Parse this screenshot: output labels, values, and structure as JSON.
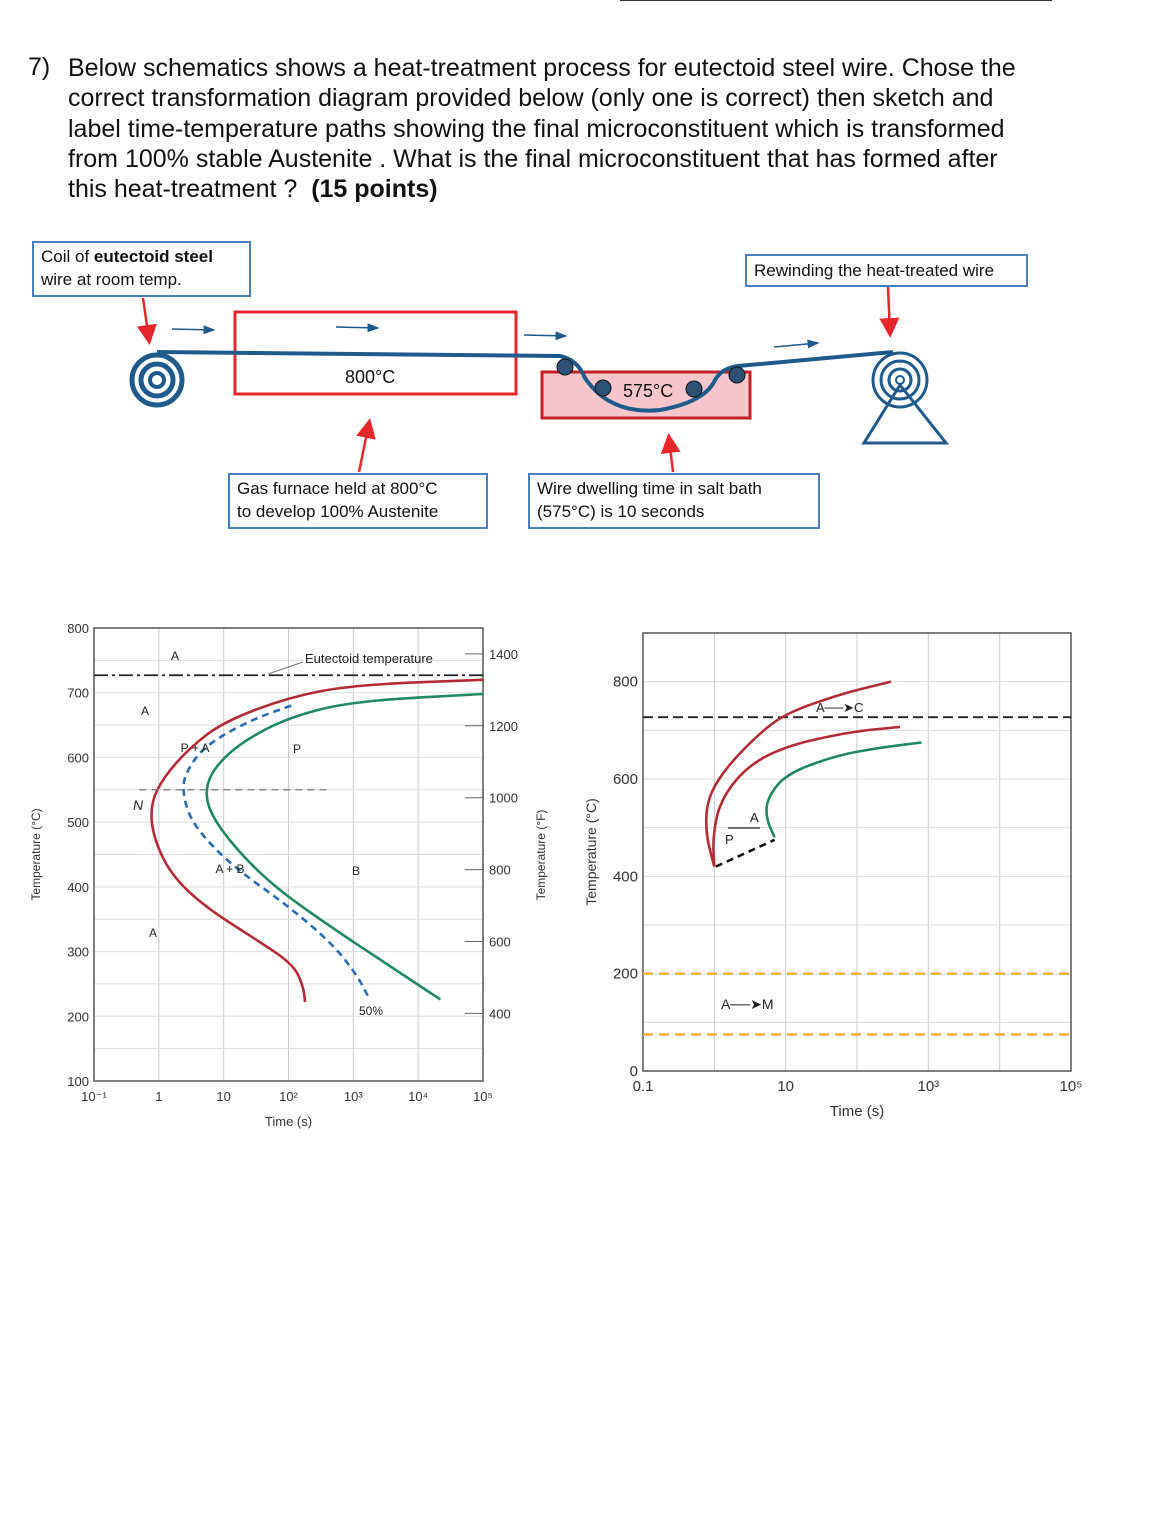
{
  "question": {
    "number": "7)",
    "text_lines": [
      "Below schematics shows a heat-treatment process for eutectoid steel wire. Chose the",
      "correct transformation diagram provided below (only one is correct) then sketch and",
      "label time-temperature paths showing the final microconstituent  which is transformed",
      "from 100% stable Austenite . What is the final microconstituent that has formed after",
      "this heat-treatment ?  "
    ],
    "points": "(15 points)"
  },
  "process": {
    "coil_label_prefix": "Coil of ",
    "coil_label_bold": "eutectoid steel",
    "coil_label_suffix": "wire at room temp.",
    "furnace_temp": "800°C",
    "bath_temp": "575°C",
    "furnace_note_line1": "Gas furnace held at  800°C",
    "furnace_note_line2": "to develop 100% Austenite",
    "bath_note_line1": "Wire dwelling time in salt bath",
    "bath_note_line2": "(575°C) is 10 seconds",
    "rewind_label": "Rewinding the heat-treated wire",
    "colors": {
      "box_border": "#4a7fc1",
      "furnace": "#e8262b",
      "bath_fill": "#f6c6cc",
      "wire": "#1f5a8c",
      "arrow_red": "#e8262b"
    }
  },
  "chart_data": [
    {
      "type": "line",
      "xlabel": "Time (s)",
      "ylabel": "Temperature (°C)",
      "y2label": "Temperature (°F)",
      "xscale": "log",
      "xlim": [
        0.1,
        100000
      ],
      "ylim": [
        100,
        800
      ],
      "x_ticks": [
        "10⁻¹",
        "1",
        "10",
        "10²",
        "10³",
        "10⁴",
        "10⁵"
      ],
      "y_ticks": [
        "100",
        "200",
        "300",
        "400",
        "500",
        "600",
        "700",
        "800"
      ],
      "y2_ticks": [
        "400",
        "600",
        "800",
        "1000",
        "1200",
        "1400"
      ],
      "grid": true,
      "eutectoid_temp": 727,
      "eutectoid_label": "Eutectoid temperature",
      "isotherm_dashed": 550,
      "region_labels": [
        "A",
        "A",
        "A",
        "P",
        "B",
        "A + B",
        "N",
        "P + A",
        "50%"
      ],
      "series": [
        {
          "style": "start",
          "color": "#b52b35",
          "points": [
            [
              100000,
              720
            ],
            [
              1000,
              712
            ],
            [
              100,
              693
            ],
            [
              10,
              655
            ],
            [
              3,
              615
            ],
            [
              1.2,
              570
            ],
            [
              0.75,
              530
            ],
            [
              0.8,
              480
            ],
            [
              1.5,
              420
            ],
            [
              5,
              370
            ],
            [
              30,
              320
            ],
            [
              120,
              280
            ],
            [
              170,
              245
            ],
            [
              180,
              222
            ]
          ]
        },
        {
          "style": "50% dashed",
          "color": "#2a6db5",
          "points": [
            [
              110,
              680
            ],
            [
              30,
              660
            ],
            [
              8,
              630
            ],
            [
              4,
              605
            ],
            [
              2.6,
              575
            ],
            [
              2.3,
              550
            ],
            [
              3,
              505
            ],
            [
              7,
              460
            ],
            [
              20,
              420
            ],
            [
              100,
              370
            ],
            [
              500,
              310
            ],
            [
              1200,
              260
            ],
            [
              1800,
              225
            ]
          ]
        },
        {
          "style": "finish",
          "color": "#1f8a60",
          "points": [
            [
              100000,
              698
            ],
            [
              1000,
              687
            ],
            [
              100,
              662
            ],
            [
              20,
              625
            ],
            [
              8,
              590
            ],
            [
              5.2,
              555
            ],
            [
              6,
              515
            ],
            [
              15,
              460
            ],
            [
              60,
              400
            ],
            [
              500,
              335
            ],
            [
              4000,
              275
            ],
            [
              22000,
              226
            ]
          ]
        }
      ]
    },
    {
      "type": "line",
      "xlabel": "Time (s)",
      "ylabel": "Temperature (°C)",
      "xscale": "log",
      "xlim": [
        0.1,
        100000
      ],
      "ylim": [
        0,
        900
      ],
      "x_ticks": [
        "0.1",
        "10",
        "10³",
        "10⁵"
      ],
      "y_ticks": [
        "0",
        "200",
        "400",
        "600",
        "800"
      ],
      "grid": true,
      "eutectoid_temp": 727,
      "ms_temp": 200,
      "mf_temp": 75,
      "labels": {
        "a_to_c": "A──➤C",
        "p_to_a_p": "P",
        "p_to_a_a": "A",
        "a_to_m": "A──➤M"
      },
      "series": [
        {
          "color": "#b52b35",
          "points": [
            [
              1,
              420
            ],
            [
              0.75,
              490
            ],
            [
              0.8,
              560
            ],
            [
              1.4,
              620
            ],
            [
              4,
              690
            ],
            [
              10,
              735
            ],
            [
              60,
              775
            ],
            [
              300,
              800
            ]
          ]
        },
        {
          "color": "#b52b35",
          "points": [
            [
              1,
              420
            ],
            [
              0.95,
              480
            ],
            [
              1.2,
              555
            ],
            [
              2.8,
              625
            ],
            [
              10,
              668
            ],
            [
              80,
              697
            ],
            [
              400,
              707
            ]
          ]
        },
        {
          "color": "#1f8a60",
          "points": [
            [
              7,
              480
            ],
            [
              5.3,
              520
            ],
            [
              5.5,
              560
            ],
            [
              10,
              610
            ],
            [
              50,
              648
            ],
            [
              200,
              664
            ],
            [
              800,
              675
            ]
          ]
        },
        {
          "color": "#111111",
          "dashed": true,
          "points": [
            [
              1.05,
              420
            ],
            [
              7,
              475
            ]
          ]
        }
      ],
      "colors": {
        "martensite_lines": "#f0a91e"
      }
    }
  ]
}
